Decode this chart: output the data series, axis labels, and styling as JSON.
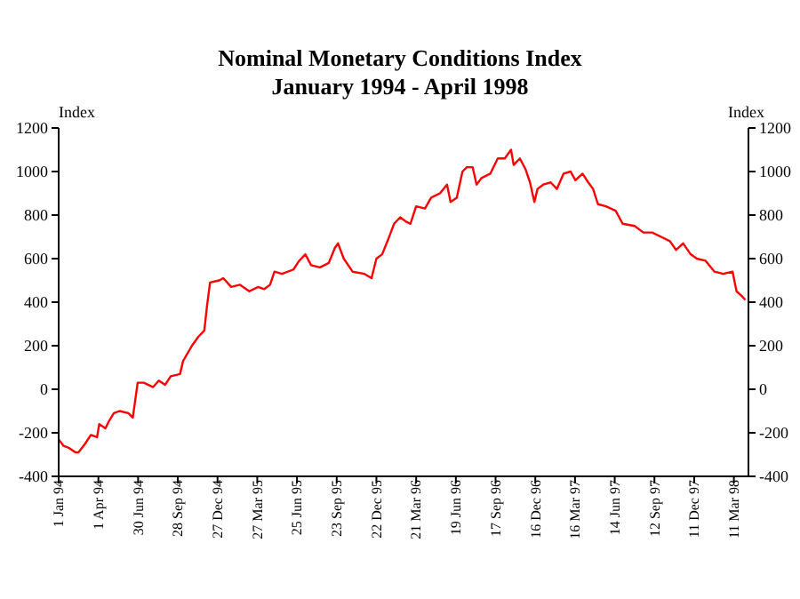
{
  "chart_data": {
    "type": "line",
    "title": "Nominal Monetary Conditions Index",
    "subtitle": "January 1994 - April 1998",
    "ylabel": "Index",
    "y2label": "Index",
    "x": [
      "1994-01-01",
      "1994-01-12",
      "1994-01-25",
      "1994-02-08",
      "1994-02-15",
      "1994-03-02",
      "1994-03-15",
      "1994-03-29",
      "1994-04-03",
      "1994-04-17",
      "1994-04-24",
      "1994-05-06",
      "1994-05-19",
      "1994-06-08",
      "1994-06-18",
      "1994-06-29",
      "1994-07-13",
      "1994-08-03",
      "1994-08-16",
      "1994-08-30",
      "1994-09-12",
      "1994-10-03",
      "1994-10-10",
      "1994-10-30",
      "1994-11-13",
      "1994-11-27",
      "1994-12-03",
      "1994-12-10",
      "1994-12-31",
      "1995-01-09",
      "1995-01-27",
      "1995-02-16",
      "1995-03-09",
      "1995-03-29",
      "1995-04-12",
      "1995-04-25",
      "1995-05-05",
      "1995-05-22",
      "1995-06-17",
      "1995-06-30",
      "1995-07-14",
      "1995-07-27",
      "1995-08-16",
      "1995-09-05",
      "1995-09-19",
      "1995-09-26",
      "1995-10-09",
      "1995-10-29",
      "1995-11-25",
      "1995-12-11",
      "1995-12-22",
      "1996-01-04",
      "1996-01-18",
      "1996-01-31",
      "1996-02-14",
      "1996-02-27",
      "1996-03-08",
      "1996-03-21",
      "1996-04-10",
      "1996-04-24",
      "1996-05-14",
      "1996-05-30",
      "1996-06-07",
      "1996-06-21",
      "1996-07-04",
      "1996-07-14",
      "1996-07-27",
      "1996-08-05",
      "1996-08-16",
      "1996-09-05",
      "1996-09-22",
      "1996-10-08",
      "1996-10-22",
      "1996-10-28",
      "1996-11-11",
      "1996-11-24",
      "1996-12-04",
      "1996-12-14",
      "1996-12-21",
      "1997-01-03",
      "1997-01-20",
      "1997-02-03",
      "1997-02-18",
      "1997-03-06",
      "1997-03-17",
      "1997-04-02",
      "1997-04-15",
      "1997-04-26",
      "1997-05-07",
      "1997-05-25",
      "1997-06-16",
      "1997-07-02",
      "1997-07-29",
      "1997-08-18",
      "1997-09-07",
      "1997-09-27",
      "1997-10-17",
      "1997-10-31",
      "1997-11-16",
      "1997-12-03",
      "1997-12-17",
      "1998-01-06",
      "1998-01-26",
      "1998-02-15",
      "1998-03-08",
      "1998-03-17",
      "1998-03-28",
      "1998-04-06"
    ],
    "series": [
      {
        "color": "#ff0000",
        "values": [
          -230,
          -260,
          -270,
          -290,
          -290,
          -250,
          -210,
          -220,
          -160,
          -180,
          -150,
          -110,
          -100,
          -110,
          -130,
          30,
          30,
          10,
          40,
          20,
          60,
          70,
          130,
          200,
          240,
          270,
          380,
          490,
          500,
          510,
          470,
          480,
          450,
          470,
          460,
          480,
          540,
          530,
          550,
          590,
          620,
          570,
          560,
          580,
          650,
          670,
          600,
          540,
          530,
          510,
          600,
          620,
          690,
          760,
          790,
          770,
          760,
          840,
          830,
          880,
          900,
          940,
          860,
          880,
          1000,
          1020,
          1020,
          940,
          970,
          990,
          1060,
          1060,
          1100,
          1030,
          1060,
          1010,
          950,
          860,
          920,
          940,
          950,
          920,
          990,
          1000,
          960,
          990,
          950,
          920,
          850,
          840,
          820,
          760,
          750,
          720,
          720,
          700,
          680,
          640,
          670,
          620,
          600,
          590,
          540,
          530,
          540,
          450,
          430,
          410
        ]
      }
    ],
    "xlim": [
      "1994-01-01",
      "1998-04-13"
    ],
    "xticks": [
      {
        "value": "1994-01-01",
        "label": "1 Jan 94"
      },
      {
        "value": "1994-04-01",
        "label": "1 Apr 94"
      },
      {
        "value": "1994-06-30",
        "label": "30 Jun 94"
      },
      {
        "value": "1994-09-28",
        "label": "28 Sep 94"
      },
      {
        "value": "1994-12-27",
        "label": "27 Dec 94"
      },
      {
        "value": "1995-03-27",
        "label": "27 Mar 95"
      },
      {
        "value": "1995-06-25",
        "label": "25 Jun 95"
      },
      {
        "value": "1995-09-23",
        "label": "23 Sep 95"
      },
      {
        "value": "1995-12-22",
        "label": "22 Dec 95"
      },
      {
        "value": "1996-03-21",
        "label": "21 Mar 96"
      },
      {
        "value": "1996-06-19",
        "label": "19 Jun 96"
      },
      {
        "value": "1996-09-17",
        "label": "17 Sep 96"
      },
      {
        "value": "1996-12-16",
        "label": "16 Dec 96"
      },
      {
        "value": "1997-03-16",
        "label": "16 Mar 97"
      },
      {
        "value": "1997-06-14",
        "label": "14 Jun 97"
      },
      {
        "value": "1997-09-12",
        "label": "12 Sep 97"
      },
      {
        "value": "1997-12-11",
        "label": "11 Dec 97"
      },
      {
        "value": "1998-03-11",
        "label": "11 Mar 98"
      }
    ],
    "ylim": [
      -400,
      1200
    ],
    "yticks": [
      -400,
      -200,
      0,
      200,
      400,
      600,
      800,
      1000,
      1200
    ],
    "y2lim": [
      -400,
      1200
    ],
    "y2ticks": [
      -400,
      -200,
      0,
      200,
      400,
      600,
      800,
      1000,
      1200
    ],
    "grid": false,
    "legend": false,
    "marker": "none",
    "line_style": "solid"
  }
}
